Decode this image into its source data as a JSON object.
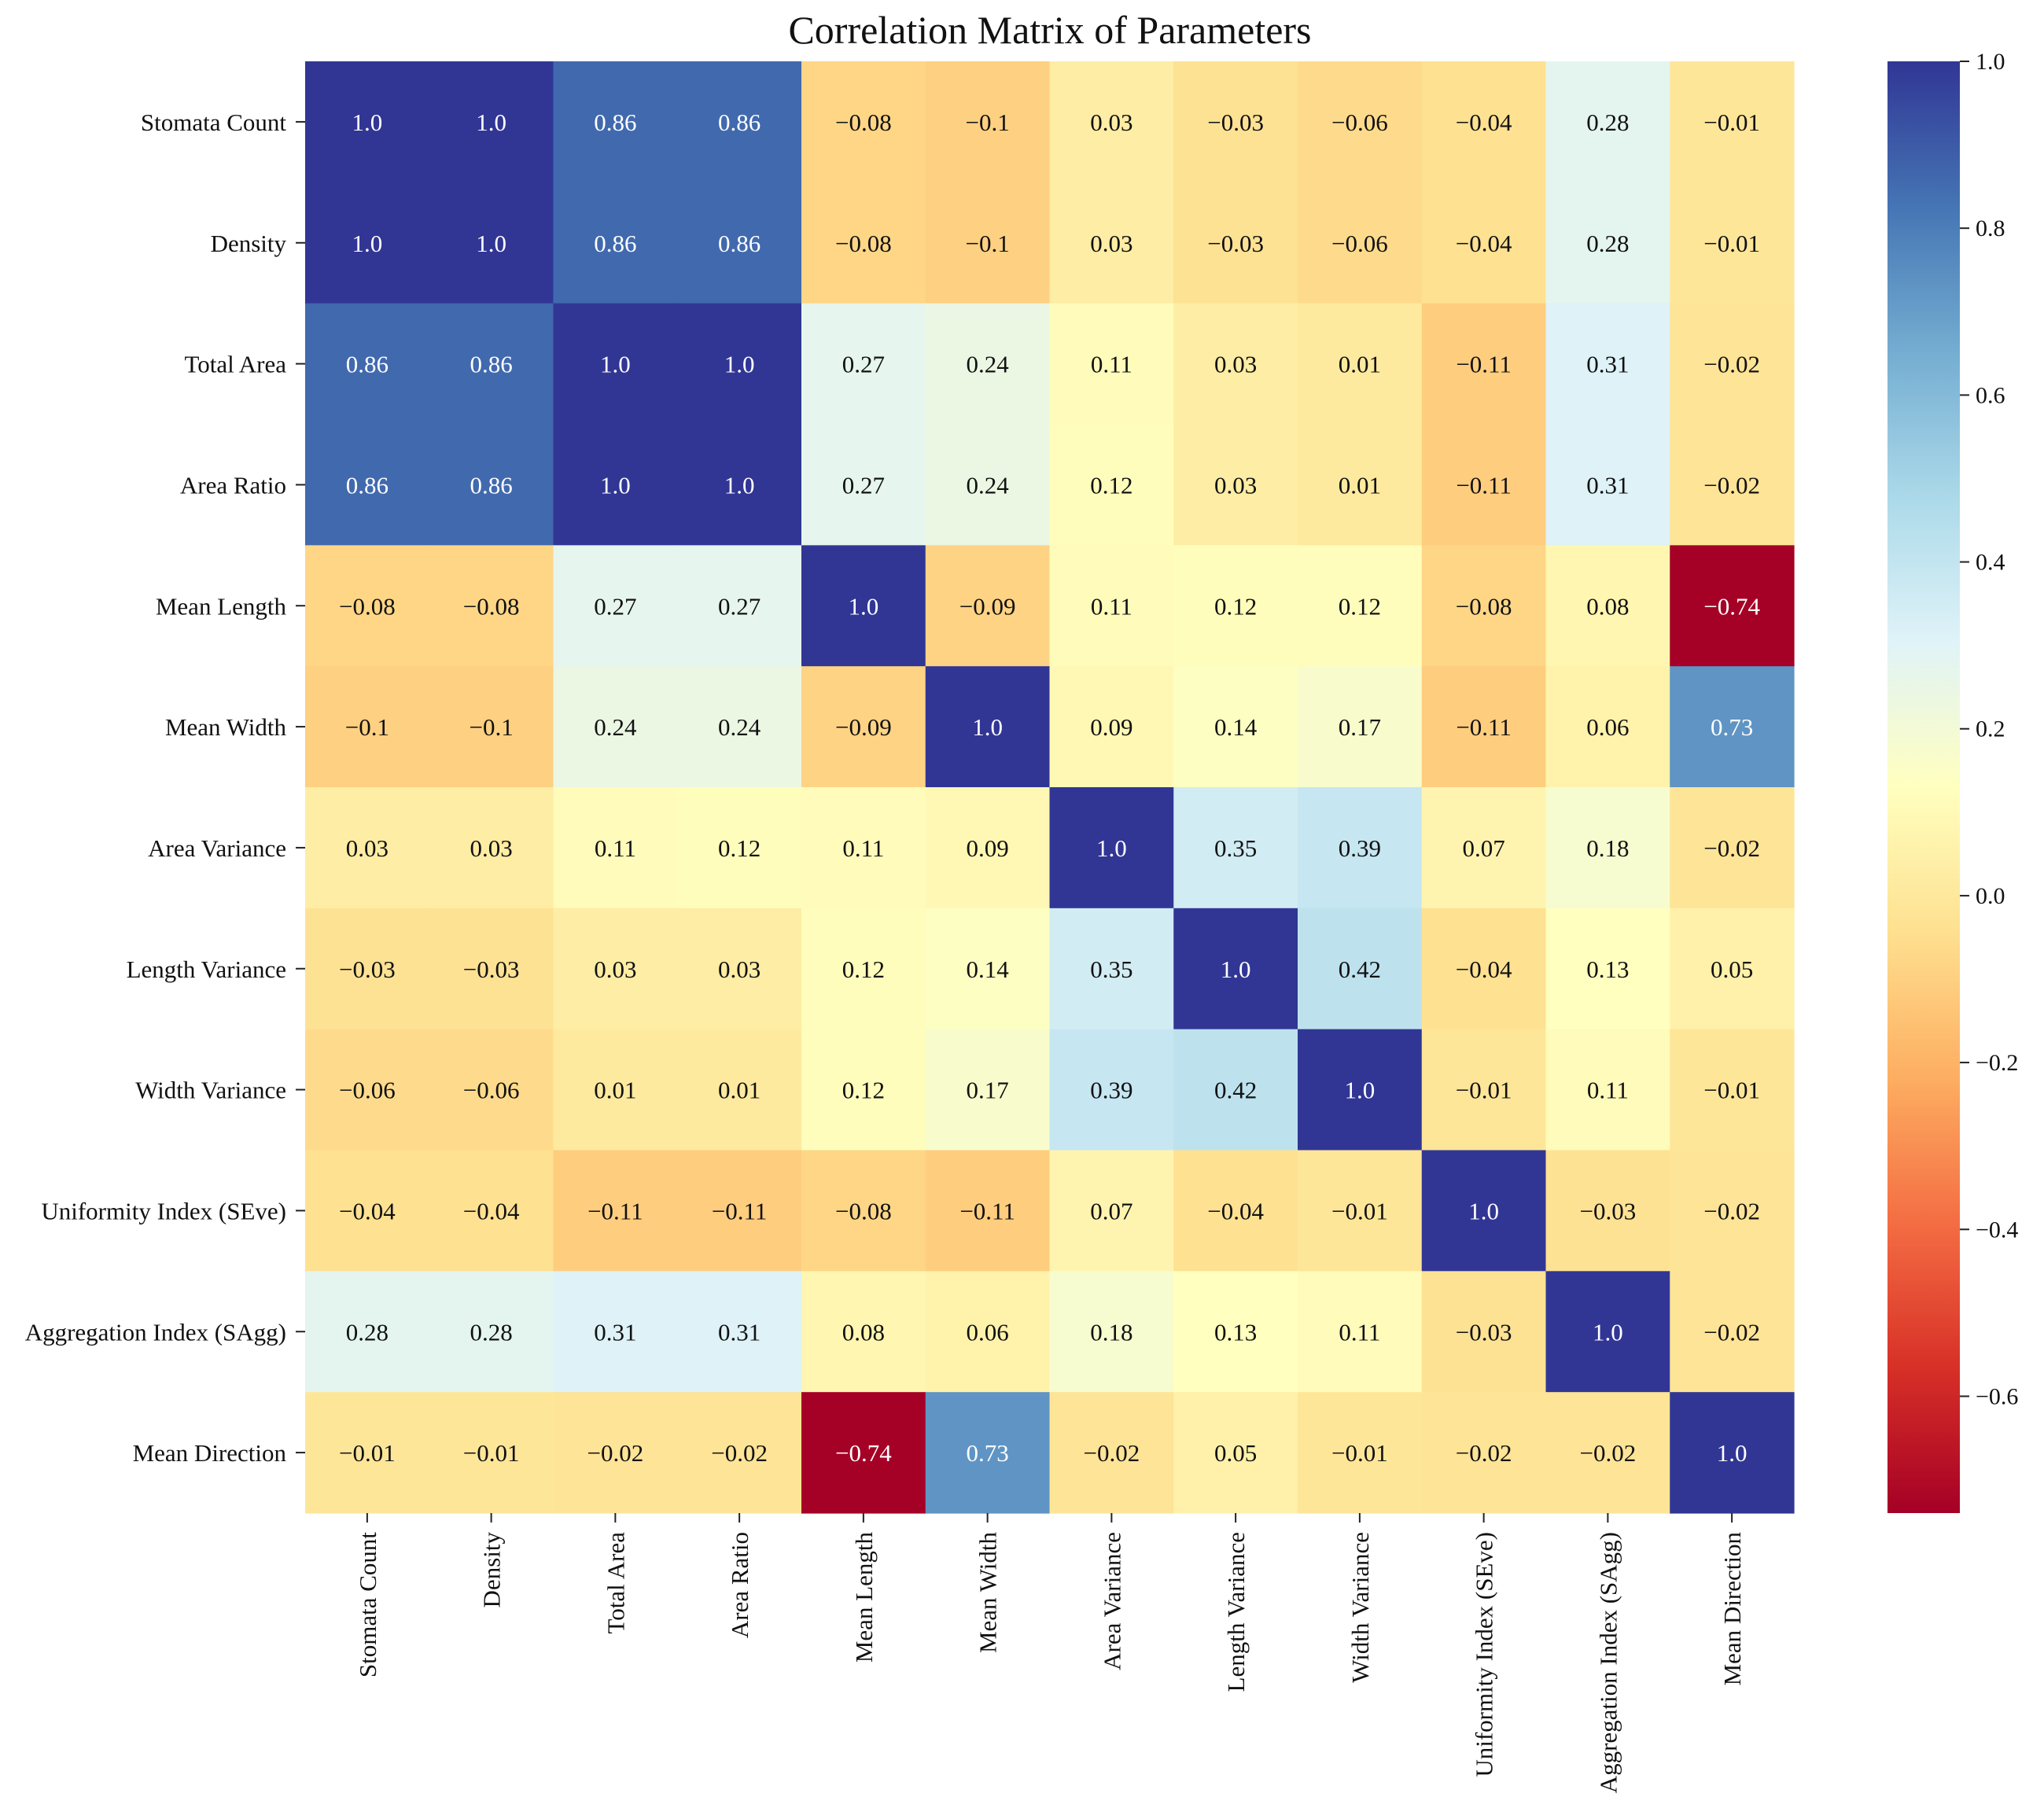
{
  "chart_data": {
    "type": "heatmap",
    "title": "Correlation Matrix of Parameters",
    "xlabel": "",
    "ylabel": "",
    "labels": [
      "Stomata Count",
      "Density",
      "Total Area",
      "Area Ratio",
      "Mean Length",
      "Mean Width",
      "Area Variance",
      "Length Variance",
      "Width Variance",
      "Uniformity Index (SEve)",
      "Aggregation Index (SAgg)",
      "Mean Direction"
    ],
    "values": [
      [
        1.0,
        1.0,
        0.86,
        0.86,
        -0.08,
        -0.1,
        0.03,
        -0.03,
        -0.06,
        -0.04,
        0.28,
        -0.01
      ],
      [
        1.0,
        1.0,
        0.86,
        0.86,
        -0.08,
        -0.1,
        0.03,
        -0.03,
        -0.06,
        -0.04,
        0.28,
        -0.01
      ],
      [
        0.86,
        0.86,
        1.0,
        1.0,
        0.27,
        0.24,
        0.11,
        0.03,
        0.01,
        -0.11,
        0.31,
        -0.02
      ],
      [
        0.86,
        0.86,
        1.0,
        1.0,
        0.27,
        0.24,
        0.12,
        0.03,
        0.01,
        -0.11,
        0.31,
        -0.02
      ],
      [
        -0.08,
        -0.08,
        0.27,
        0.27,
        1.0,
        -0.09,
        0.11,
        0.12,
        0.12,
        -0.08,
        0.08,
        -0.74
      ],
      [
        -0.1,
        -0.1,
        0.24,
        0.24,
        -0.09,
        1.0,
        0.09,
        0.14,
        0.17,
        -0.11,
        0.06,
        0.73
      ],
      [
        0.03,
        0.03,
        0.11,
        0.12,
        0.11,
        0.09,
        1.0,
        0.35,
        0.39,
        0.07,
        0.18,
        -0.02
      ],
      [
        -0.03,
        -0.03,
        0.03,
        0.03,
        0.12,
        0.14,
        0.35,
        1.0,
        0.42,
        -0.04,
        0.13,
        0.05
      ],
      [
        -0.06,
        -0.06,
        0.01,
        0.01,
        0.12,
        0.17,
        0.39,
        0.42,
        1.0,
        -0.01,
        0.11,
        -0.01
      ],
      [
        -0.04,
        -0.04,
        -0.11,
        -0.11,
        -0.08,
        -0.11,
        0.07,
        -0.04,
        -0.01,
        1.0,
        -0.03,
        -0.02
      ],
      [
        0.28,
        0.28,
        0.31,
        0.31,
        0.08,
        0.06,
        0.18,
        0.13,
        0.11,
        -0.03,
        1.0,
        -0.02
      ],
      [
        -0.01,
        -0.01,
        -0.02,
        -0.02,
        -0.74,
        0.73,
        -0.02,
        0.05,
        -0.01,
        -0.02,
        -0.02,
        1.0
      ]
    ],
    "colormap": "RdYlBu",
    "colormap_stops": [
      "#a50026",
      "#d73027",
      "#f46d43",
      "#fdae61",
      "#fee090",
      "#ffffbf",
      "#e0f3f8",
      "#abd9e9",
      "#74add1",
      "#4575b4",
      "#313695"
    ],
    "vrange": [
      -0.74,
      1.0
    ],
    "colorbar_ticks": [
      1.0,
      0.8,
      0.6,
      0.4,
      0.2,
      0.0,
      -0.2,
      -0.4,
      -0.6
    ],
    "colorbar_tick_labels": [
      "1.0",
      "0.8",
      "0.6",
      "0.4",
      "0.2",
      "0.0",
      "−0.2",
      "−0.4",
      "−0.6"
    ],
    "grid": false,
    "legend": "colorbar-right"
  }
}
